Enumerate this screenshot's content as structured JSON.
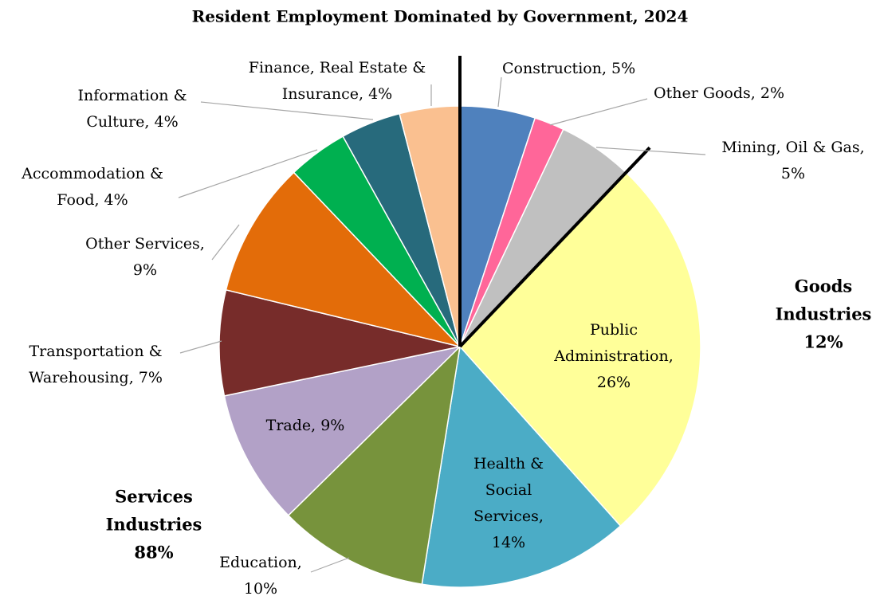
{
  "chart_data": {
    "type": "pie",
    "title": "Resident Employment Dominated by Government, 2024",
    "values": [
      5,
      2,
      5,
      26,
      14,
      10,
      9,
      7,
      9,
      4,
      4,
      4
    ],
    "value_labels": [
      [
        "Construction, 5%"
      ],
      [
        "Other Goods, 2%"
      ],
      [
        "Mining, Oil & Gas,",
        "5%"
      ],
      [
        "Public",
        "Administration,",
        "26%"
      ],
      [
        "Health &",
        "Social",
        "Services,",
        "14%"
      ],
      [
        "Education,",
        "10%"
      ],
      [
        "Trade, 9%"
      ],
      [
        "Transportation &",
        "Warehousing, 7%"
      ],
      [
        "Other Services,",
        "9%"
      ],
      [
        "Accommodation &",
        "Food, 4%"
      ],
      [
        "Information &",
        "Culture, 4%"
      ],
      [
        "Finance, Real Estate &",
        "Insurance, 4%"
      ]
    ],
    "colors": [
      "#4f81bd",
      "#ff6699",
      "#c0c0c0",
      "#ffff99",
      "#4bacc6",
      "#77933c",
      "#b2a1c7",
      "#772c2a",
      "#e36c09",
      "#00b050",
      "#276a7c",
      "#fac090"
    ],
    "annotations": [
      [
        "Goods",
        "Industries",
        "12%"
      ],
      [
        "Services",
        "Industries",
        "88%"
      ]
    ]
  }
}
